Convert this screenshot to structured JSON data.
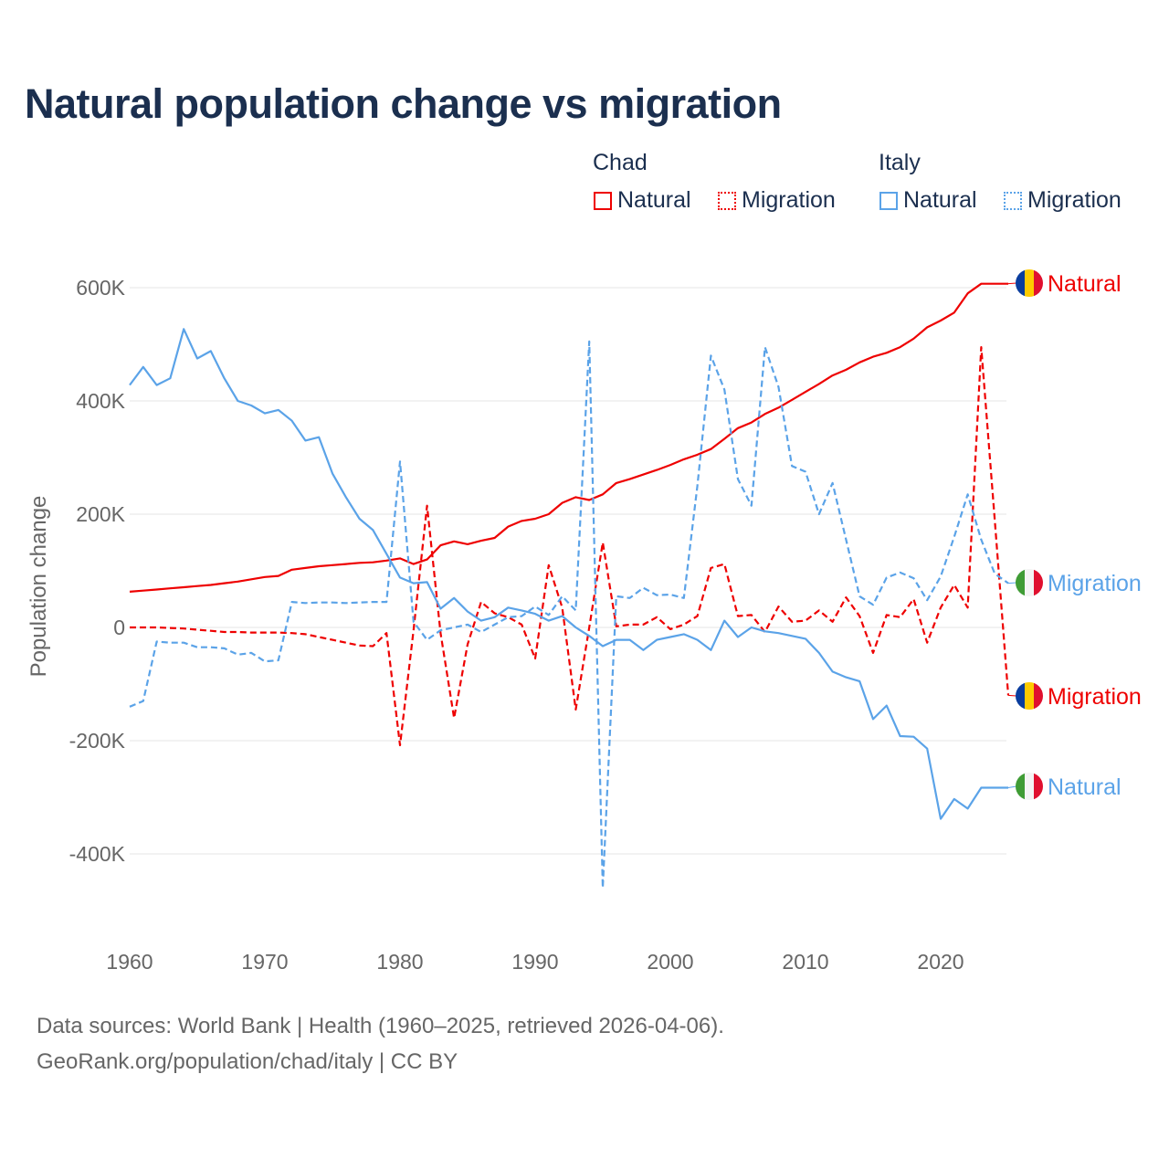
{
  "chart_data": {
    "type": "line",
    "title": "Natural population change vs migration",
    "xlabel": "",
    "ylabel": "Population change",
    "xlim": [
      1960,
      2025
    ],
    "ylim": [
      -400000,
      600000
    ],
    "x_ticks": [
      "1960",
      "1970",
      "1980",
      "1990",
      "2000",
      "2010",
      "2020"
    ],
    "y_ticks": [
      {
        "v": 600000,
        "label": "600K"
      },
      {
        "v": 400000,
        "label": "400K"
      },
      {
        "v": 200000,
        "label": "200K"
      },
      {
        "v": 0,
        "label": "0"
      },
      {
        "v": -200000,
        "label": "-200K"
      },
      {
        "v": -400000,
        "label": "-400K"
      }
    ],
    "grid": true,
    "legend_position": "top-right",
    "legend": {
      "groups": [
        {
          "country": "Chad",
          "items": [
            "Natural",
            "Migration"
          ]
        },
        {
          "country": "Italy",
          "items": [
            "Natural",
            "Migration"
          ]
        }
      ]
    },
    "x_start": 1960,
    "series": [
      {
        "name": "Chad Natural",
        "label": "Natural",
        "country": "Chad",
        "color": "#ee0000",
        "dash": false,
        "values": [
          63,
          65,
          67,
          69,
          71,
          73,
          75,
          78,
          81,
          85,
          89,
          91,
          102,
          105,
          108,
          110,
          112,
          114,
          115,
          118,
          122,
          112,
          120,
          145,
          152,
          147,
          153,
          158,
          178,
          188,
          192,
          200,
          220,
          230,
          225,
          235,
          255,
          262,
          270,
          278,
          287,
          297,
          305,
          315,
          333,
          352,
          362,
          377,
          388,
          402,
          416,
          430,
          445,
          455,
          468,
          478,
          485,
          495,
          510,
          530,
          542,
          556,
          590,
          607,
          607,
          607
        ]
      },
      {
        "name": "Chad Migration",
        "label": "Migration",
        "country": "Chad",
        "color": "#ee0000",
        "dash": true,
        "values": [
          0,
          0,
          0,
          -1,
          -2,
          -4,
          -6,
          -8,
          -8,
          -9,
          -9,
          -9,
          -10,
          -12,
          -17,
          -22,
          -27,
          -32,
          -33,
          -10,
          -208,
          -5,
          215,
          -10,
          -160,
          -30,
          45,
          25,
          18,
          5,
          -55,
          110,
          35,
          -145,
          0,
          150,
          2,
          5,
          5,
          18,
          -3,
          5,
          20,
          105,
          112,
          20,
          22,
          -8,
          37,
          10,
          12,
          30,
          10,
          53,
          20,
          -45,
          22,
          18,
          50,
          -27,
          35,
          75,
          35,
          495,
          190,
          -120
        ]
      },
      {
        "name": "Italy Natural",
        "label": "Natural",
        "country": "Italy",
        "color": "#5ba3e8",
        "dash": false,
        "values": [
          428,
          460,
          428,
          440,
          527,
          475,
          488,
          440,
          400,
          392,
          378,
          384,
          365,
          330,
          336,
          272,
          230,
          192,
          172,
          130,
          88,
          78,
          80,
          33,
          52,
          28,
          12,
          18,
          35,
          30,
          24,
          12,
          20,
          0,
          -15,
          -33,
          -22,
          -22,
          -40,
          -22,
          -17,
          -12,
          -22,
          -40,
          12,
          -17,
          0,
          -7,
          -10,
          -15,
          -20,
          -45,
          -78,
          -88,
          -95,
          -162,
          -138,
          -192,
          -193,
          -214,
          -338,
          -303,
          -320,
          -283,
          -283,
          -283
        ]
      },
      {
        "name": "Italy Migration",
        "label": "Migration",
        "country": "Italy",
        "color": "#5ba3e8",
        "dash": true,
        "values": [
          -140,
          -130,
          -25,
          -27,
          -27,
          -35,
          -35,
          -37,
          -48,
          -45,
          -60,
          -58,
          45,
          43,
          44,
          44,
          43,
          44,
          45,
          45,
          293,
          10,
          -22,
          -5,
          0,
          5,
          -8,
          5,
          18,
          20,
          37,
          22,
          55,
          30,
          505,
          -460,
          55,
          52,
          70,
          57,
          58,
          52,
          250,
          480,
          420,
          262,
          215,
          495,
          425,
          285,
          275,
          200,
          255,
          155,
          55,
          40,
          88,
          97,
          87,
          48,
          90,
          160,
          235,
          155,
          95,
          78
        ]
      }
    ],
    "value_unit": "thousands"
  },
  "footer": {
    "line1": "Data sources: World Bank | Health (1960–2025, retrieved 2026-04-06).",
    "line2": "GeoRank.org/population/chad/italy | CC BY"
  },
  "colors": {
    "chad": "#ee0000",
    "italy": "#5ba3e8",
    "title": "#1b2f4f"
  }
}
